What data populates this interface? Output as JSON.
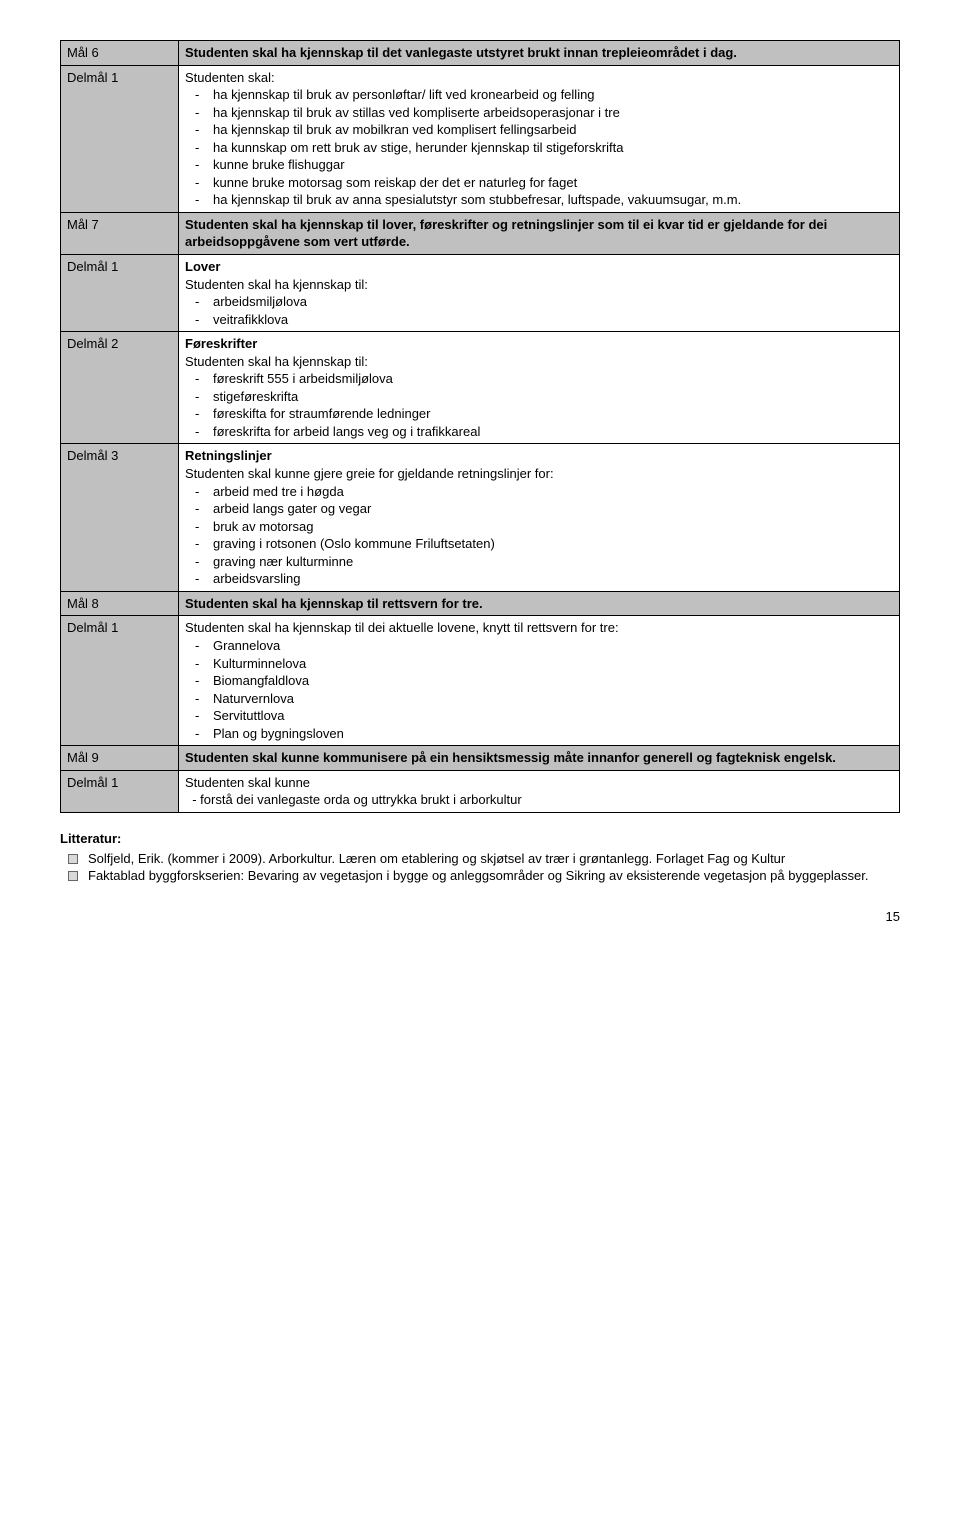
{
  "rows": [
    {
      "label": "Mål 6",
      "leftGray": true,
      "rightGray": true,
      "heading": "Studenten skal ha kjennskap til det vanlegaste utstyret brukt innan trepleieområdet i dag."
    },
    {
      "label": "Delmål 1",
      "leftGray": true,
      "intro": "Studenten skal:",
      "items": [
        "ha kjennskap til bruk av personløftar/ lift ved kronearbeid og felling",
        "ha kjennskap til bruk av stillas ved kompliserte arbeidsoperasjonar i tre",
        "ha kjennskap til bruk av mobilkran ved komplisert fellingsarbeid",
        "ha kunnskap om rett bruk av stige, herunder kjennskap til stigeforskrifta",
        "kunne bruke flishuggar",
        "kunne bruke motorsag som reiskap der det er naturleg for faget",
        "ha kjennskap til bruk av anna spesialutstyr som stubbefresar, luftspade, vakuumsugar, m.m."
      ]
    },
    {
      "label": "Mål 7",
      "leftGray": true,
      "rightGray": true,
      "heading": "Studenten skal ha kjennskap til lover, føreskrifter og retningslinjer som til ei kvar tid er gjeldande for dei arbeidsoppgåvene som vert utførde."
    },
    {
      "label": "Delmål 1",
      "leftGray": true,
      "subheading": "Lover",
      "intro": "Studenten skal ha kjennskap til:",
      "items": [
        "arbeidsmiljølova",
        "veitrafikklova"
      ]
    },
    {
      "label": "Delmål 2",
      "leftGray": true,
      "subheading": "Føreskrifter",
      "intro": "Studenten skal ha kjennskap til:",
      "items": [
        "føreskrift 555 i arbeidsmiljølova",
        "stigeføreskrifta",
        "føreskifta for straumførende ledninger",
        "føreskrifta for arbeid langs veg og i trafikkareal"
      ]
    },
    {
      "label": "Delmål 3",
      "leftGray": true,
      "subheading": "Retningslinjer",
      "intro": "Studenten skal kunne gjere greie for gjeldande retningslinjer for:",
      "items": [
        "arbeid med tre i høgda",
        "arbeid langs gater og vegar",
        "bruk av motorsag",
        "graving i rotsonen (Oslo kommune Friluftsetaten)",
        "graving nær kulturminne",
        "arbeidsvarsling"
      ]
    },
    {
      "label": "Mål 8",
      "leftGray": true,
      "rightGray": true,
      "heading": "Studenten skal ha kjennskap til rettsvern for tre."
    },
    {
      "label": "Delmål 1",
      "leftGray": true,
      "intro": "Studenten skal ha kjennskap til dei aktuelle lovene, knytt til rettsvern for tre:",
      "items": [
        "Grannelova",
        "Kulturminnelova",
        "Biomangfaldlova",
        "Naturvernlova",
        "Servituttlova",
        "Plan og bygningsloven"
      ]
    },
    {
      "label": "Mål 9",
      "leftGray": true,
      "rightGray": true,
      "heading": "Studenten skal kunne kommunisere på ein hensiktsmessig måte innanfor generell og fagteknisk engelsk."
    },
    {
      "label": "Delmål 1",
      "leftGray": true,
      "intro": "Studenten skal kunne",
      "plainLine": "  - forstå dei vanlegaste orda og uttrykka brukt i arborkultur"
    }
  ],
  "literature": {
    "heading": "Litteratur:",
    "items": [
      "Solfjeld, Erik. (kommer i 2009). Arborkultur. Læren om etablering og skjøtsel av trær i grøntanlegg. Forlaget Fag og Kultur",
      "Faktablad byggforskserien: Bevaring av vegetasjon i bygge og anleggsområder og Sikring av eksisterende vegetasjon på byggeplasser."
    ]
  },
  "pageNumber": "15",
  "colors": {
    "gray": "#c0c0c0",
    "white": "#ffffff",
    "text": "#000000",
    "bulletBorder": "#666666",
    "bulletFill": "#d9d9d9"
  },
  "typography": {
    "fontFamily": "Arial",
    "bodyFontSize": 13,
    "lineHeight": 1.35
  }
}
